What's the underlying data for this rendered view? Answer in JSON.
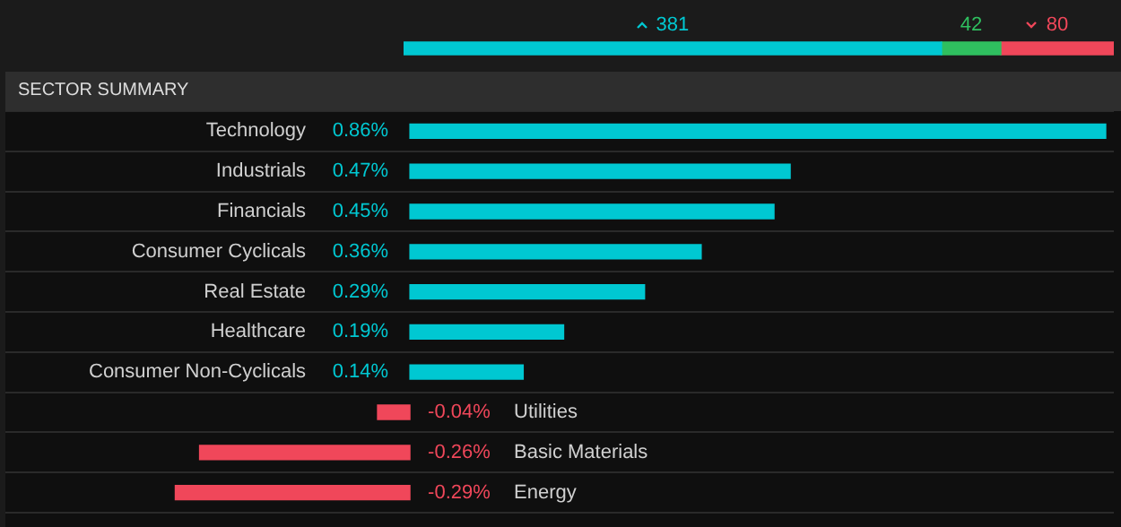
{
  "chart_data": [
    {
      "type": "bar",
      "orientation": "horizontal",
      "stacked": true,
      "categories": [
        null
      ],
      "series": [
        {
          "color": "#00c8d2",
          "values": [
            381
          ]
        },
        {
          "color": "#2fbf5f",
          "values": [
            42
          ]
        },
        {
          "color": "#f0475a",
          "values": [
            80
          ]
        }
      ],
      "data_labels": true,
      "xlim": [
        0,
        503
      ],
      "tick_labels": false
    },
    {
      "type": "bar",
      "orientation": "horizontal",
      "title": "SECTOR SUMMARY",
      "categories": [
        "Technology",
        "Industrials",
        "Financials",
        "Consumer Cyclicals",
        "Real Estate",
        "Healthcare",
        "Consumer Non-Cyclicals",
        "Utilities",
        "Basic Materials",
        "Energy"
      ],
      "values": [
        0.86,
        0.47,
        0.45,
        0.36,
        0.29,
        0.19,
        0.14,
        -0.04,
        -0.26,
        -0.29
      ],
      "colors": [
        "#00c8d2",
        "#00c8d2",
        "#00c8d2",
        "#00c8d2",
        "#00c8d2",
        "#00c8d2",
        "#00c8d2",
        "#f0475a",
        "#f0475a",
        "#f0475a"
      ],
      "value_labels": [
        "0.86%",
        "0.47%",
        "0.45%",
        "0.36%",
        "0.29%",
        "0.19%",
        "0.14%",
        "-0.04%",
        "-0.26%",
        "-0.29%"
      ],
      "xlim": [
        -0.5,
        0.87
      ],
      "tick_labels": false,
      "grid": "y"
    }
  ]
}
